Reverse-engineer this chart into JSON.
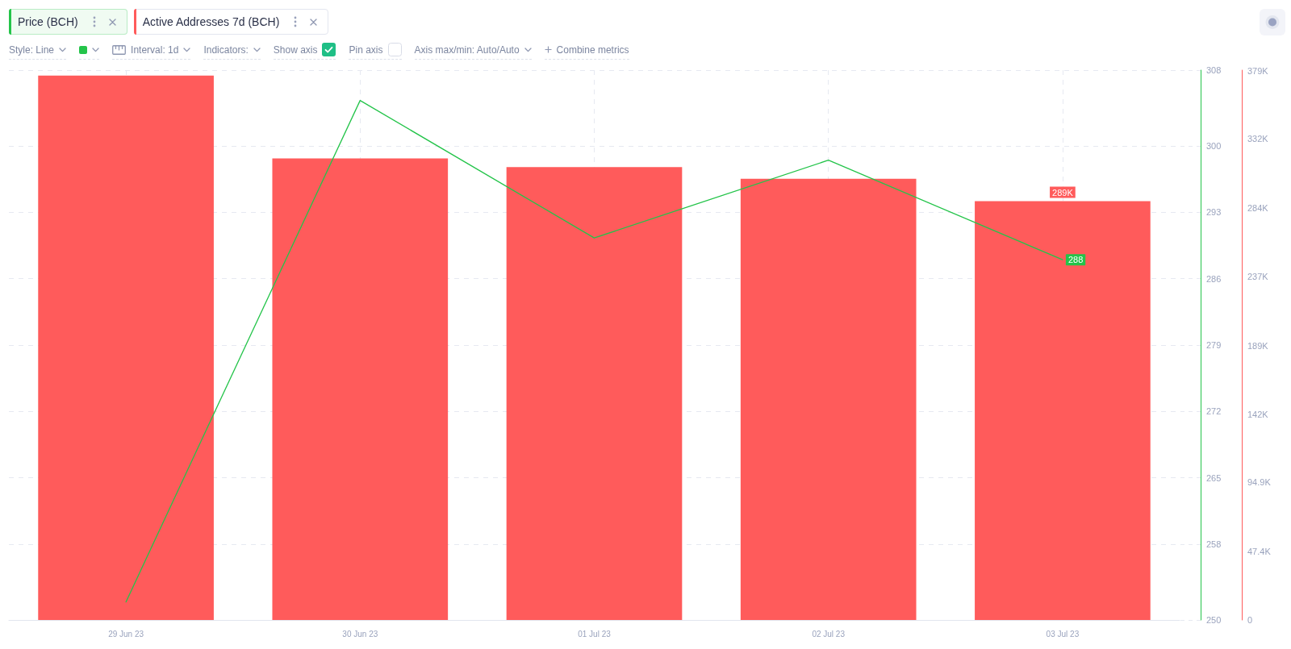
{
  "chart_data": {
    "type": "line",
    "categories": [
      "29 Jun 23",
      "30 Jun 23",
      "01 Jul 23",
      "02 Jul 23",
      "03 Jul 23"
    ],
    "series": [
      {
        "name": "Price (BCH)",
        "color": "#24c44a",
        "values": [
          251.9,
          304.8,
          290.3,
          298.5,
          288
        ],
        "value_labels": [
          null,
          null,
          null,
          null,
          "288"
        ]
      },
      {
        "name": "Active Addresses 7d (BCH)",
        "type": "bar",
        "axis": "y2",
        "color": "#ff5b5b",
        "values": [
          375600,
          318500,
          312500,
          304500,
          289000
        ],
        "value_labels": [
          null,
          null,
          null,
          null,
          "289K"
        ]
      }
    ],
    "ylim": [
      250,
      308
    ],
    "yticks": [
      250,
      258,
      265,
      272,
      279,
      286,
      293,
      300,
      308
    ],
    "y2lim": [
      0,
      379400
    ],
    "y2ticks": [
      0,
      {
        "value": 47400,
        "label": "47.4K"
      },
      {
        "value": 94900,
        "label": "94.9K"
      },
      {
        "value": 142000,
        "label": "142K"
      },
      {
        "value": 189000,
        "label": "189K"
      },
      {
        "value": 237000,
        "label": "237K"
      },
      {
        "value": 284000,
        "label": "284K"
      },
      {
        "value": 332000,
        "label": "332K"
      },
      {
        "value": 379000,
        "label": "379K"
      }
    ],
    "grid": true,
    "legend": "top left",
    "marker": "none",
    "annotations": [
      "Style: Line",
      "Interval: 1d",
      "Indicators:",
      "Show axis",
      "Pin axis",
      "Axis max/min: Auto/Auto",
      "Combine metrics"
    ]
  }
}
